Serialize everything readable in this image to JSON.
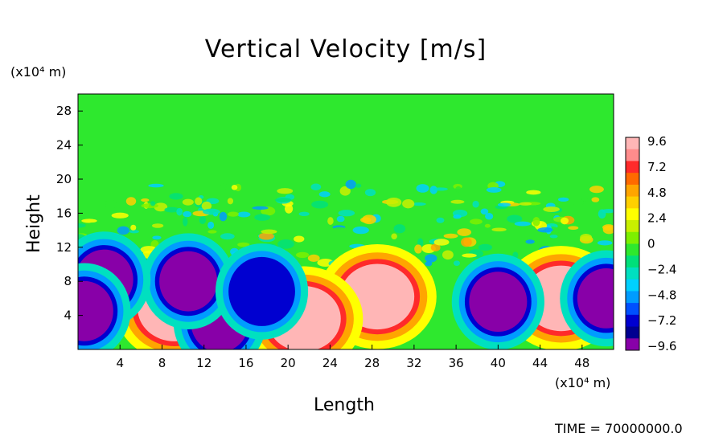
{
  "chart_data": {
    "type": "heatmap",
    "title": "Vertical Velocity [m/s]",
    "xlabel": "Length",
    "ylabel": "Height",
    "x_unit_label": "(x10⁴ m)",
    "y_unit_label": "(x10⁴ m)",
    "x_ticks": [
      4,
      8,
      12,
      16,
      20,
      24,
      28,
      32,
      36,
      40,
      44,
      48
    ],
    "y_ticks": [
      4,
      8,
      12,
      16,
      20,
      24,
      28
    ],
    "xlim": [
      0,
      51
    ],
    "ylim": [
      0,
      30
    ],
    "colorbar": {
      "labels": [
        "9.6",
        "7.2",
        "4.8",
        "2.4",
        "0",
        "−2.4",
        "−4.8",
        "−7.2",
        "−9.6"
      ],
      "values": [
        9.6,
        7.2,
        4.8,
        2.4,
        0,
        -2.4,
        -4.8,
        -7.2,
        -9.6
      ],
      "colors": [
        "#ffb6b6",
        "#ff8c8c",
        "#ff2a2a",
        "#ff6a00",
        "#ffa500",
        "#ffd000",
        "#ffff00",
        "#c8f000",
        "#7df000",
        "#2ee82e",
        "#00e07a",
        "#00e0c0",
        "#00d0ff",
        "#009cff",
        "#0050ff",
        "#0000d0",
        "#000090",
        "#8800a8"
      ],
      "min": -9.6,
      "max": 9.6
    },
    "features": [
      {
        "x": 9.2,
        "y": 4.8,
        "value": 9.6
      },
      {
        "x": 28.5,
        "y": 6.2,
        "value": 9.6
      },
      {
        "x": 21.5,
        "y": 3.6,
        "value": 9.6
      },
      {
        "x": 46.0,
        "y": 6.0,
        "value": 9.6
      },
      {
        "x": 13.5,
        "y": 3.2,
        "value": -9.6
      },
      {
        "x": 40.0,
        "y": 5.6,
        "value": -9.6
      },
      {
        "x": 10.5,
        "y": 8.0,
        "value": -9.6
      },
      {
        "x": 2.5,
        "y": 8.2,
        "value": -9.6
      },
      {
        "x": 17.5,
        "y": 6.8,
        "value": -7.2
      },
      {
        "x": 0.6,
        "y": 4.5,
        "value": -9.6
      },
      {
        "x": 50.3,
        "y": 6.0,
        "value": -9.6
      }
    ],
    "time_label": "TIME  =  70000000.0"
  }
}
